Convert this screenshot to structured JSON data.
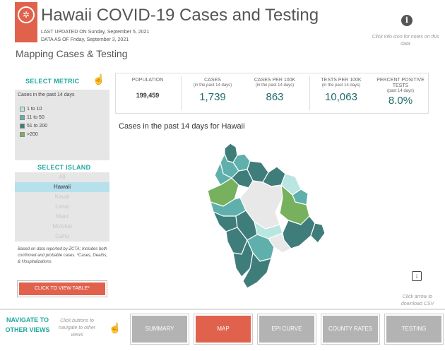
{
  "header": {
    "title": "Hawaii COVID-19 Cases and Testing",
    "last_updated": "LAST UPDATED ON Sunday, September 5, 2021",
    "data_as_of": "DATA AS OF Friday, September 3, 2021",
    "info_note": "Click info icon for notes on this data"
  },
  "section_title": "Mapping Cases & Testing",
  "metric": {
    "label": "SELECT METRIC",
    "box_title": "Cases in the past 14 days",
    "legend": [
      {
        "label": "1 to 10",
        "color": "#b9e6e0"
      },
      {
        "label": "11 to 50",
        "color": "#5fb0ac"
      },
      {
        "label": "51 to 200",
        "color": "#3f7d7b"
      },
      {
        "label": ">200",
        "color": "#77b15d"
      }
    ]
  },
  "island": {
    "label": "SELECT ISLAND",
    "options": [
      "All",
      "Hawaii",
      "Kauai",
      "Lanai",
      "Maui",
      "Molokai",
      "Oahu"
    ],
    "selected": "Hawaii"
  },
  "footnote": "Based on data reported by ZCTA; Includes both confirmed and probable cases. *Cases, Deaths, & Hospitalizations",
  "table_button": "CLICK TO VIEW TABLE*",
  "stats": [
    {
      "label": "POPULATION",
      "sub": "",
      "value": "199,459"
    },
    {
      "label": "CASES",
      "sub": "(in the past 14 days)",
      "value": "1,739"
    },
    {
      "label": "CASES PER 100K",
      "sub": "(in the past 14 days)",
      "value": "863"
    },
    {
      "label": "TESTS PER 100K",
      "sub": "(in the past 14 days)",
      "value": "10,063"
    },
    {
      "label": "PERCENT POSITIVE TESTS",
      "sub": "(past 14 days)",
      "value": "8.0%"
    }
  ],
  "map_title": "Cases in the past 14 days for Hawaii",
  "download_note": "Click arrow to download CSV",
  "nav": {
    "title": "NAVIGATE TO OTHER VIEWS",
    "hint": "Click buttons to navigate to other views",
    "buttons": [
      "SUMMARY",
      "MAP",
      "EPI CURVE",
      "COUNTY RATES",
      "TESTING"
    ],
    "active": "MAP"
  },
  "colors": {
    "accent": "#e0624c",
    "teal_heading": "#1fa8a0",
    "value_text": "#1f6b6b",
    "no_data": "#e8e8e8"
  },
  "icons": {
    "info": "info-icon",
    "hand": "hand-pointer-icon",
    "download": "download-icon",
    "logo": "state-seal-logo"
  }
}
